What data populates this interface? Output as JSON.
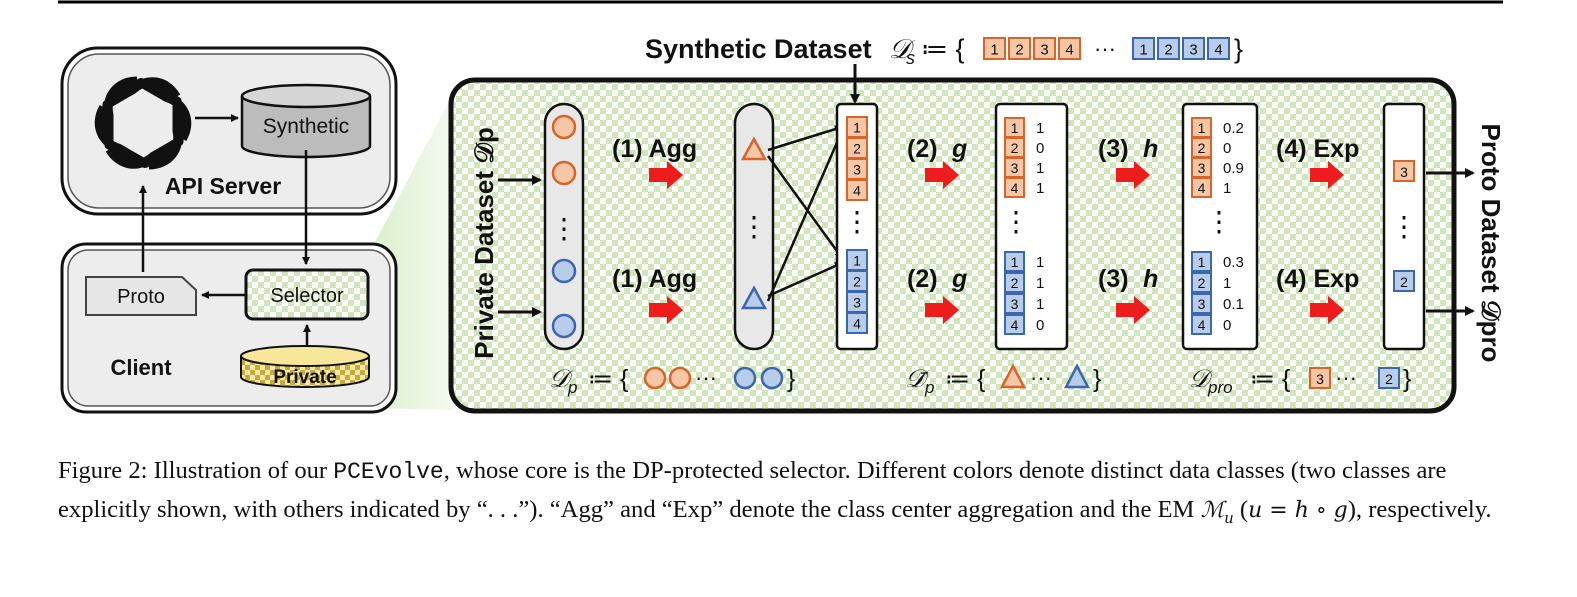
{
  "server": {
    "label": "API Server",
    "db_label": "Synthetic",
    "logo_icon": "openai-logo-icon"
  },
  "client": {
    "label": "Client",
    "proto_label": "Proto",
    "selector_label": "Selector",
    "private_label": "Private"
  },
  "main": {
    "synthetic_dataset_label": "Synthetic Dataset",
    "synthetic_dataset_symbol": "𝒟",
    "synthetic_dataset_sub": "s",
    "synthetic_dataset_assign": "≔ {",
    "synthetic_dataset_close": "}",
    "ellipsis": "···",
    "private_dataset_label": "Private Dataset 𝒟p",
    "proto_dataset_label": "Proto Dataset 𝒟pro",
    "dots": "⋮",
    "steps": {
      "agg": "(1) Agg",
      "g_num": "(2)",
      "g_sym": "g",
      "h_num": "(3)",
      "h_sym": "h",
      "exp": "(4) Exp"
    },
    "synthetic_ids": [
      "1",
      "2",
      "3",
      "4"
    ],
    "g_values_orange": [
      "1",
      "0",
      "1",
      "1"
    ],
    "g_values_blue": [
      "1",
      "1",
      "1",
      "0"
    ],
    "h_values_orange": [
      "0.2",
      "0",
      "0.9",
      "1"
    ],
    "h_values_blue": [
      "0.3",
      "1",
      "0.1",
      "0"
    ],
    "proto_orange": "3",
    "proto_blue": "2",
    "set_dp": {
      "sym": "𝒟",
      "sub": "p",
      "assign": "≔ {",
      "close": "}"
    },
    "set_dp_bar": {
      "sym": "𝒟̄",
      "sub": "p",
      "assign": "≔ {",
      "close": "}"
    },
    "set_dpro": {
      "sym": "𝒟",
      "sub": "pro",
      "assign": "≔ {",
      "close": "}"
    }
  },
  "colors": {
    "orange_fill": "#f6c7a6",
    "orange_stroke": "#d8642a",
    "blue_fill": "#b8cdea",
    "blue_stroke": "#3d67ad",
    "arrow_red": "#ee1c1c",
    "checker_green": "#cfe6b8"
  },
  "caption": {
    "p1": "Figure 2: Illustration of our ",
    "code": "PCEvolve",
    "p2": ", whose core is the DP-protected selector. Different colors denote distinct data classes (two classes are explicitly shown, with others indicated by “. . .”). “Agg” and “Exp” denote the class center aggregation and the EM ",
    "math": "ℳ",
    "math_sub": "u",
    "p3": " (",
    "math2": "u = h ∘ g",
    "p4": "), respectively."
  }
}
